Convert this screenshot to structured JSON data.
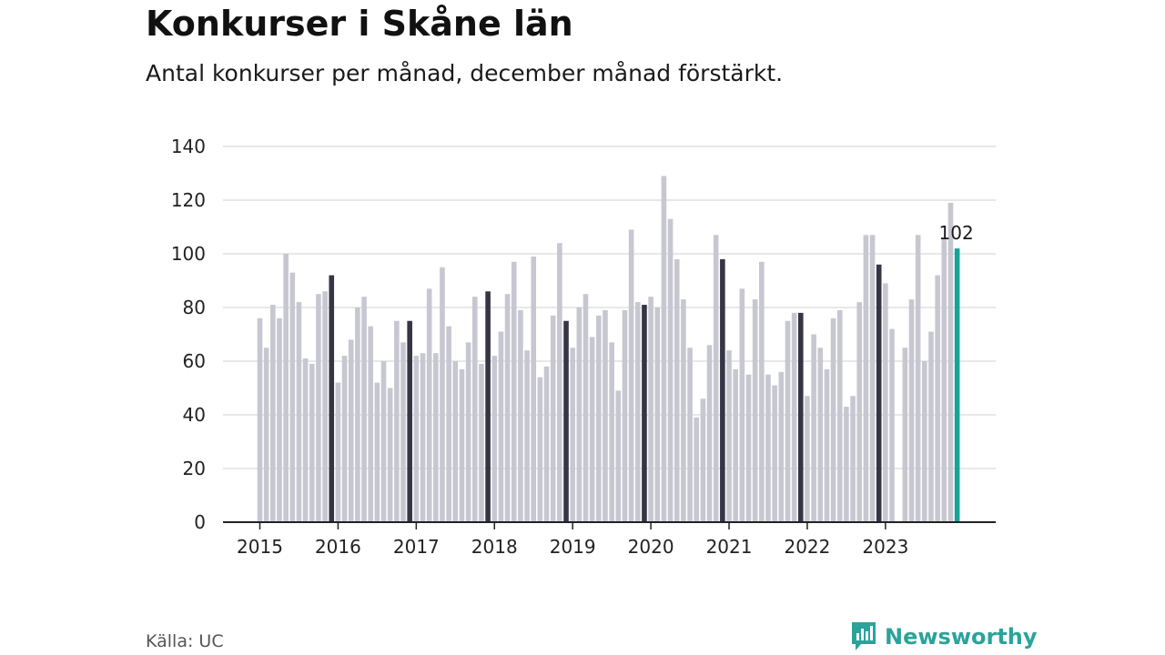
{
  "header": {
    "title": "Konkurser i Skåne län",
    "subtitle": "Antal konkurser per månad, december månad förstärkt."
  },
  "footer": {
    "source": "Källa: UC",
    "brand": "Newsworthy",
    "brand_icon": "newsworthy-logo-icon"
  },
  "colors": {
    "bar": "#c7c7d1",
    "december_bar": "#363545",
    "latest_bar": "#16a398",
    "grid": "#d9d9d9",
    "axis": "#222222",
    "brand": "#2ba39a"
  },
  "chart_data": {
    "type": "bar",
    "title": "Konkurser i Skåne län",
    "subtitle": "Antal konkurser per månad, december månad förstärkt.",
    "xlabel": "",
    "ylabel": "",
    "ylim": [
      0,
      140
    ],
    "yticks": [
      0,
      20,
      40,
      60,
      80,
      100,
      120,
      140
    ],
    "year_labels": [
      "2015",
      "2016",
      "2017",
      "2018",
      "2019",
      "2020",
      "2021",
      "2022",
      "2023"
    ],
    "grid": true,
    "legend": "none",
    "highlight": "december",
    "annotation": {
      "label": "102",
      "target": "2023-12"
    },
    "values": [
      76,
      65,
      81,
      76,
      100,
      93,
      82,
      61,
      59,
      85,
      86,
      92,
      52,
      62,
      68,
      80,
      84,
      73,
      52,
      60,
      50,
      75,
      67,
      75,
      62,
      63,
      87,
      63,
      95,
      73,
      60,
      57,
      67,
      84,
      59,
      86,
      62,
      71,
      85,
      97,
      79,
      64,
      99,
      54,
      58,
      77,
      104,
      75,
      65,
      80,
      85,
      69,
      77,
      79,
      67,
      49,
      79,
      109,
      82,
      81,
      84,
      80,
      129,
      113,
      98,
      83,
      65,
      39,
      46,
      66,
      107,
      98,
      64,
      57,
      87,
      55,
      83,
      97,
      55,
      51,
      56,
      75,
      78,
      78,
      47,
      70,
      65,
      57,
      76,
      79,
      43,
      47,
      82,
      107,
      107,
      96,
      89,
      72,
      0,
      65,
      83,
      107,
      60,
      71,
      92,
      106,
      119,
      102
    ]
  }
}
